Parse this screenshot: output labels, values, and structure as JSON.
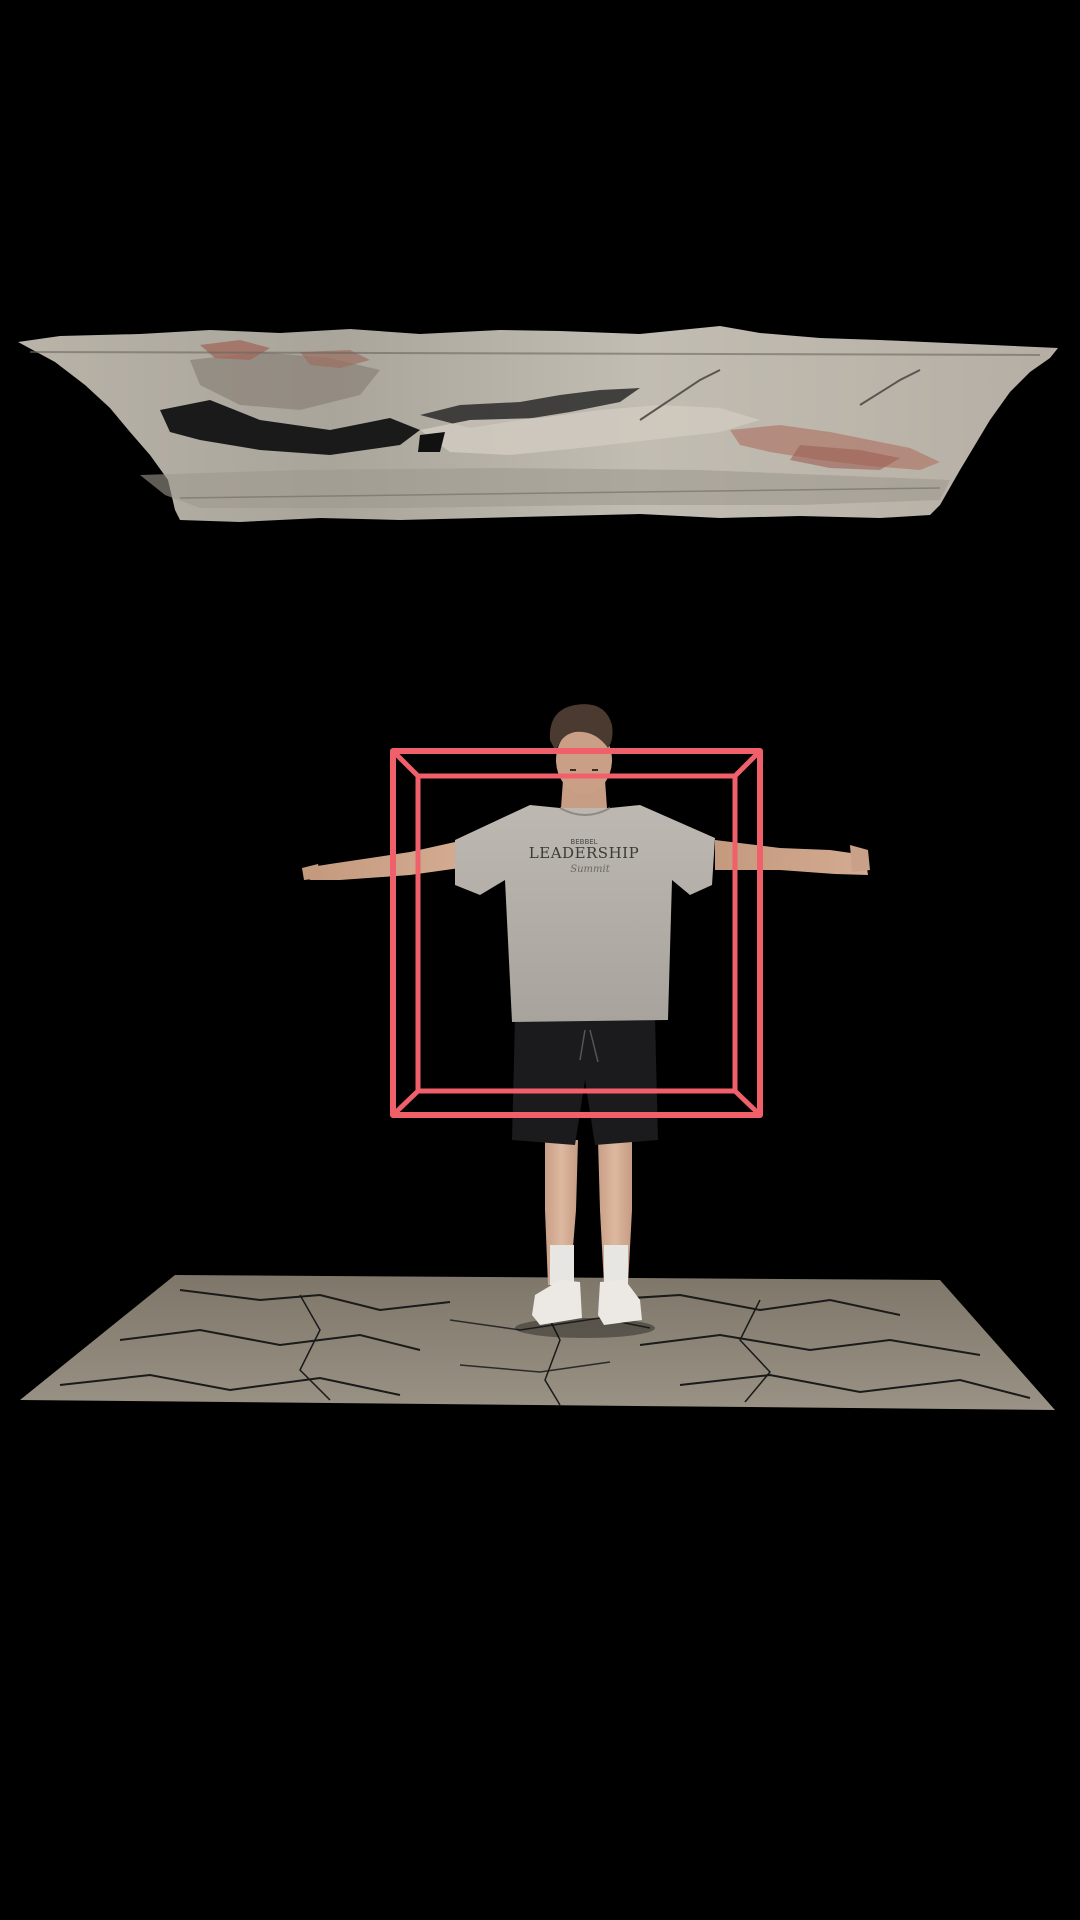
{
  "scene": {
    "background_color": "#000000",
    "bounding_box_color": "#f0606b",
    "ceiling_mesh": "scanned ceiling texture",
    "floor_mesh": "scanned floor with cracks",
    "subject": "person standing in T-pose"
  },
  "shirt_print": {
    "top_line": "BEBBEL",
    "main_line": "LEADERSHIP",
    "script_line": "Summit"
  }
}
